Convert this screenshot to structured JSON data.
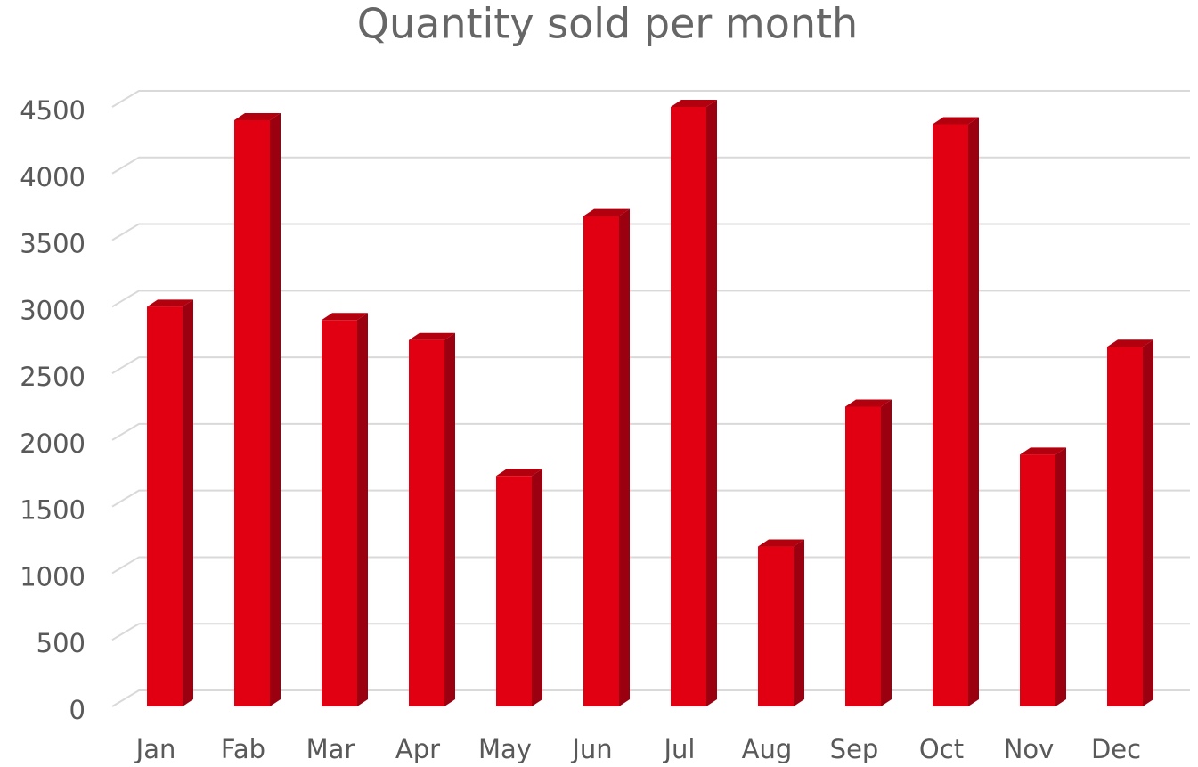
{
  "chart_data": {
    "type": "bar3d",
    "title": "Quantity sold per month",
    "categories": [
      "Jan",
      "Fab",
      "Mar",
      "Apr",
      "May",
      "Jun",
      "Jul",
      "Aug",
      "Sep",
      "Oct",
      "Nov",
      "Dec"
    ],
    "values": [
      3000,
      4400,
      2900,
      2750,
      1730,
      3680,
      4500,
      1200,
      2250,
      4370,
      1890,
      2700
    ],
    "color": "#e10012",
    "ylim": [
      0,
      4500
    ],
    "yticks": [
      0,
      500,
      1000,
      1500,
      2000,
      2500,
      3000,
      3500,
      4000,
      4500
    ],
    "grid": true
  }
}
